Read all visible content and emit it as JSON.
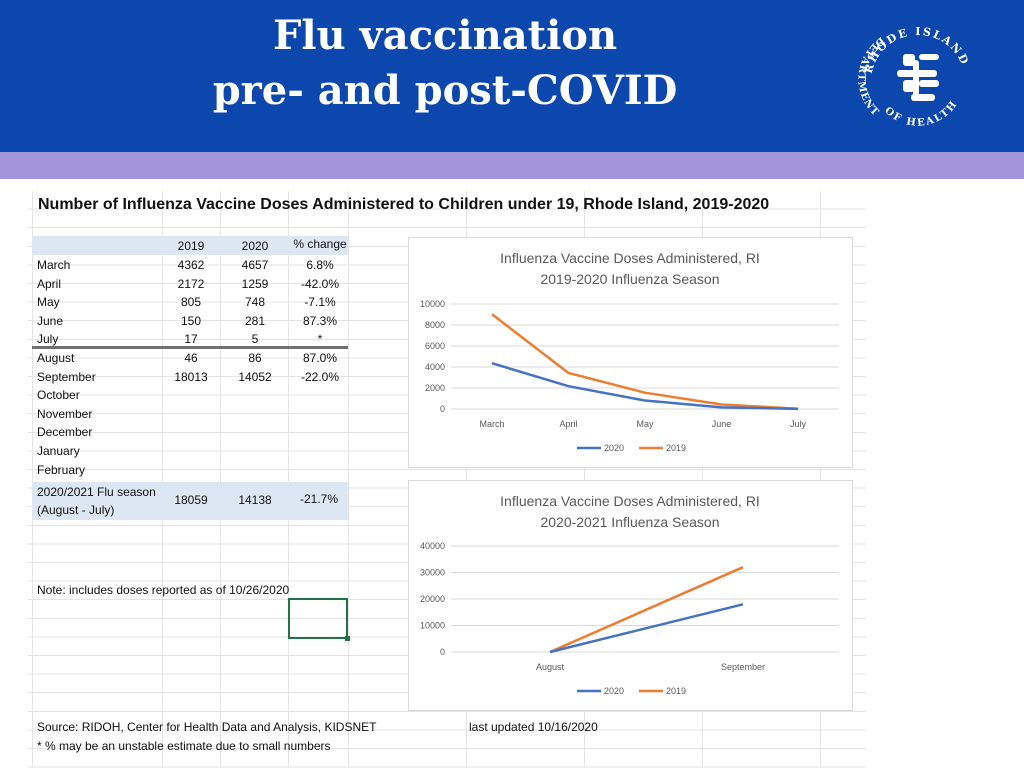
{
  "slide": {
    "title_line1": "Flu vaccination",
    "title_line2": "pre- and post-COVID",
    "header_color": "#0b47ad",
    "band_color": "#a295db"
  },
  "logo": {
    "label": "RHODE ISLAND DEPARTMENT OF HEALTH",
    "top_text": "RHODE ISLAND",
    "left_text": "DEPARTMENT",
    "bottom_text": "OF HEALTH"
  },
  "table": {
    "title": "Number of Influenza Vaccine Doses Administered to Children under 19, Rhode Island, 2019-2020",
    "col_2019": "2019",
    "col_2020": "2020",
    "col_change": "% change",
    "rows": [
      {
        "month": "March",
        "y2019": "4362",
        "y2020": "4657",
        "change": "6.8%"
      },
      {
        "month": "April",
        "y2019": "2172",
        "y2020": "1259",
        "change": "-42.0%"
      },
      {
        "month": "May",
        "y2019": "805",
        "y2020": "748",
        "change": "-7.1%"
      },
      {
        "month": "June",
        "y2019": "150",
        "y2020": "281",
        "change": "87.3%"
      },
      {
        "month": "July",
        "y2019": "17",
        "y2020": "5",
        "change": "*"
      },
      {
        "month": "August",
        "y2019": "46",
        "y2020": "86",
        "change": "87.0%"
      },
      {
        "month": "September",
        "y2019": "18013",
        "y2020": "14052",
        "change": "-22.0%"
      },
      {
        "month": "October",
        "y2019": "",
        "y2020": "",
        "change": ""
      },
      {
        "month": "November",
        "y2019": "",
        "y2020": "",
        "change": ""
      },
      {
        "month": "December",
        "y2019": "",
        "y2020": "",
        "change": ""
      },
      {
        "month": "January",
        "y2019": "",
        "y2020": "",
        "change": ""
      },
      {
        "month": "February",
        "y2019": "",
        "y2020": "",
        "change": ""
      }
    ],
    "season_label_line1": "2020/2021 Flu season",
    "season_label_line2": "(August - July)",
    "season_2019": "18059",
    "season_2020": "14138",
    "season_change": "-21.7%",
    "note": "Note: includes doses reported as of 10/26/2020",
    "source": "Source: RIDOH, Center for Health Data and Analysis, KIDSNET",
    "last_updated": "last updated 10/16/2020",
    "footnote": "* % may be an unstable estimate due to small numbers"
  },
  "chart_data": [
    {
      "type": "line",
      "title": "Influenza Vaccine Doses Administered, RI",
      "subtitle": "2019-2020 Influenza Season",
      "categories": [
        "March",
        "April",
        "May",
        "June",
        "July"
      ],
      "series": [
        {
          "name": "2020",
          "color": "#4472c4",
          "values": [
            4362,
            2172,
            805,
            150,
            17
          ]
        },
        {
          "name": "2019",
          "color": "#ed7d31",
          "values": [
            9019,
            3431,
            1553,
            431,
            22
          ]
        }
      ],
      "ylim": [
        0,
        10000
      ],
      "yticks": [
        0,
        2000,
        4000,
        6000,
        8000,
        10000
      ],
      "ytick_labels": [
        "0",
        "2000",
        "4000",
        "6000",
        "8000",
        "10000"
      ],
      "legend": "bottom",
      "xlabel": "",
      "ylabel": ""
    },
    {
      "type": "line",
      "title": "Influenza Vaccine Doses Administered, RI",
      "subtitle": "2020-2021 Influenza Season",
      "categories": [
        "August",
        "September"
      ],
      "series": [
        {
          "name": "2020",
          "color": "#4472c4",
          "values": [
            0,
            18000
          ]
        },
        {
          "name": "2019",
          "color": "#ed7d31",
          "values": [
            0,
            32000
          ]
        }
      ],
      "ylim": [
        0,
        40000
      ],
      "yticks": [
        0,
        10000,
        20000,
        30000,
        40000
      ],
      "ytick_labels": [
        "0",
        "10000",
        "20000",
        "30000",
        "40000"
      ],
      "legend": "bottom",
      "xlabel": "",
      "ylabel": ""
    }
  ]
}
